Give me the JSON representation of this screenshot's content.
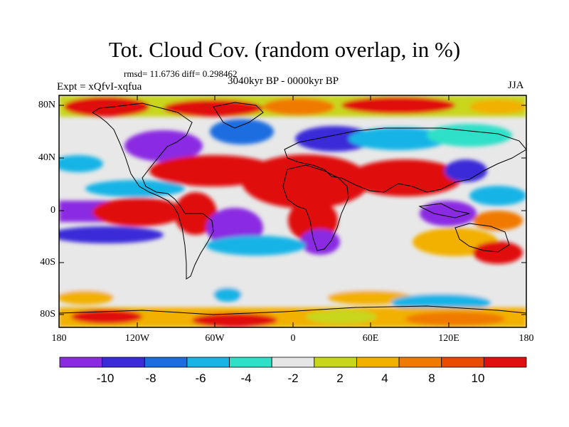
{
  "title": "Tot. Cloud Cov. (random overlap, in %)",
  "stats": "rmsd= 11.6736 diff= 0.298462",
  "expt": "Expt = xQfvI-xqfua",
  "period": "3040kyr BP - 0000kyr BP",
  "season": "JJA",
  "lat_ticks": [
    "80N",
    "40N",
    "0",
    "40S",
    "80S"
  ],
  "lon_ticks": [
    "180",
    "120W",
    "60W",
    "0",
    "60E",
    "120E",
    "180"
  ],
  "colorbar": {
    "colors": [
      "#8a2be2",
      "#3b2ad8",
      "#1c6de0",
      "#18b4e6",
      "#2fe0c8",
      "#e6e6e6",
      "#c8d61a",
      "#f2b000",
      "#f07a00",
      "#e84a00",
      "#e01010"
    ],
    "labels": [
      "-10",
      "-8",
      "-6",
      "-4",
      "-2",
      "2",
      "4",
      "8",
      "10"
    ]
  }
}
